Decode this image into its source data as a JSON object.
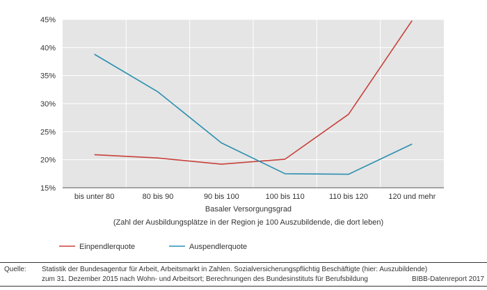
{
  "chart_data": {
    "type": "line",
    "categories": [
      "bis unter 80",
      "80 bis 90",
      "90 bis 100",
      "100 bis 110",
      "110 bis 120",
      "120 und mehr"
    ],
    "series": [
      {
        "name": "Einpendlerquote",
        "color": "#c8403a",
        "values": [
          20.9,
          20.3,
          19.2,
          20.1,
          28.1,
          44.8
        ]
      },
      {
        "name": "Auspendlerquote",
        "color": "#2a8fb0",
        "values": [
          38.8,
          32.1,
          23.0,
          17.5,
          17.4,
          22.8
        ]
      }
    ],
    "y_ticks": [
      "45%",
      "40%",
      "35%",
      "30%",
      "25%",
      "20%",
      "15%"
    ],
    "ylim": [
      15,
      45
    ],
    "ylabel": "",
    "xlabel_line1": "Basaler Versorgungsgrad",
    "xlabel_line2": "(Zahl der Ausbildungsplätze in der Region je 100 Auszubildende, die dort leben)",
    "plot_background": "#e5e5e5",
    "grid": true,
    "legend_position": "bottom-left"
  },
  "source": {
    "label": "Quelle:",
    "line1": "Statistik der Bundesagentur für Arbeit, Arbeitsmarkt in Zahlen. Sozialversicherungspflichtig Beschäftigte (hier: Auszubildende)",
    "line2": "zum 31. Dezember 2015 nach Wohn- und Arbeitsort; Berechnungen des Bundesinstituts für Berufsbildung"
  },
  "credit": "BIBB-Datenreport 2017"
}
